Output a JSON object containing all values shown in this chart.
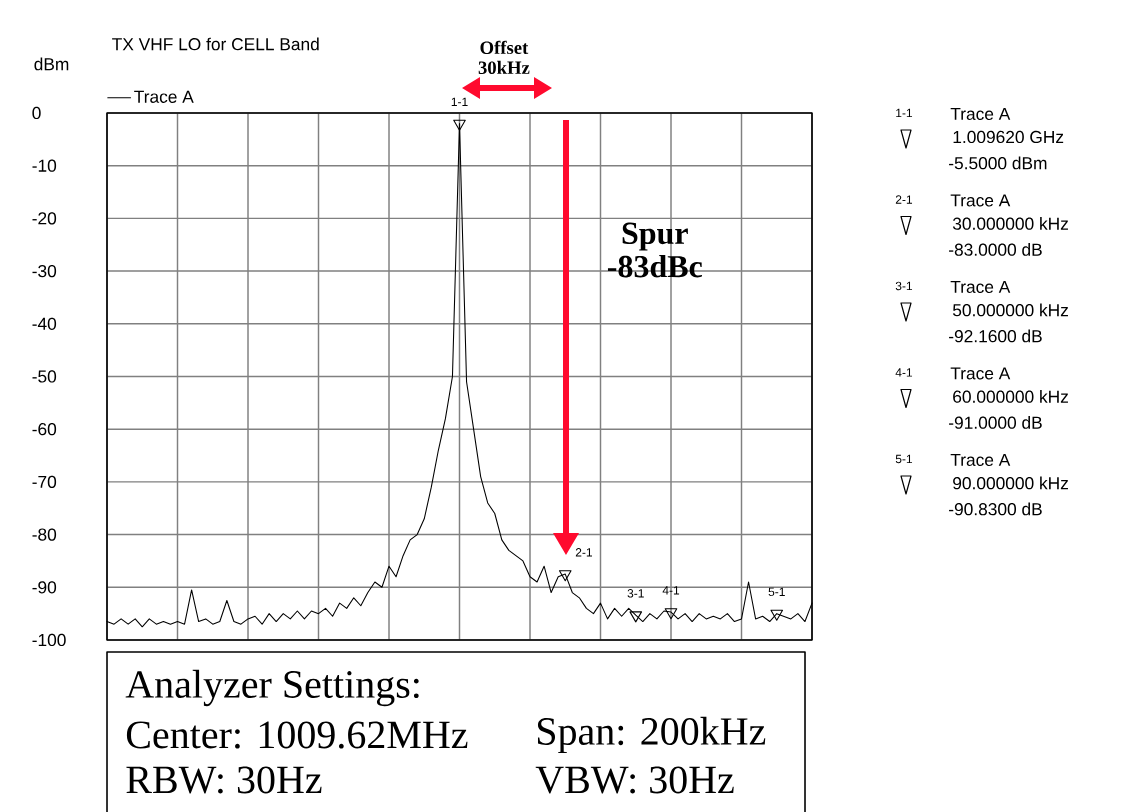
{
  "chart_data": {
    "type": "line",
    "title": "TX VHF LO for CELL Band",
    "ylabel": "dBm",
    "categories": [
      null,
      null,
      null,
      null,
      null,
      null,
      null,
      null,
      null,
      null,
      null,
      null,
      null,
      null,
      null,
      null,
      null,
      null,
      null,
      null,
      null,
      null,
      null,
      null,
      null,
      null,
      null,
      null,
      null,
      null,
      null,
      null,
      null,
      null,
      null,
      null,
      null,
      null,
      null,
      null,
      null,
      null,
      null,
      null,
      null,
      null,
      null,
      null,
      null,
      null,
      null,
      null,
      null,
      null,
      null,
      null,
      null,
      null,
      null,
      null,
      null,
      null,
      null,
      null,
      null,
      null,
      null,
      null,
      null,
      null,
      null,
      null,
      null,
      null,
      null,
      null,
      null,
      null,
      null,
      null,
      null,
      null,
      null,
      null,
      null,
      null,
      null,
      null,
      null,
      null,
      null,
      null,
      null,
      null,
      null,
      null,
      null,
      null,
      null,
      null,
      null
    ],
    "series": [
      {
        "name": "Trace A",
        "color": "#000000",
        "values": [
          -96.5,
          -97,
          -96,
          -97,
          -96,
          -97.5,
          -96,
          -97,
          -96.5,
          -97,
          -96.5,
          -97,
          -90.5,
          -96.5,
          -96,
          -97,
          -96.5,
          -92.5,
          -96.5,
          -97,
          -96,
          -95.5,
          -97,
          -95,
          -96.5,
          -95,
          -96,
          -94.5,
          -96,
          -94.5,
          -95,
          -94,
          -95.5,
          -93,
          -94,
          -92,
          -93.5,
          -91,
          -89,
          -90,
          -86,
          -88,
          -84,
          -81,
          -80,
          -77,
          -71,
          -64,
          -58,
          -50,
          -2,
          -51,
          -60,
          -69,
          -74,
          -76,
          -81,
          -83,
          -84,
          -85,
          -88,
          -89,
          -86,
          -91,
          -88,
          -87.5,
          -91,
          -92,
          -94,
          -95,
          -93,
          -96,
          -94,
          -95.5,
          -94,
          -95.3,
          -96.5,
          -95,
          -96,
          -94.5,
          -94.7,
          -96,
          -95,
          -96.5,
          -95,
          -96,
          -95.5,
          -96,
          -95,
          -96.5,
          -96,
          -89,
          -96,
          -95.5,
          -96.5,
          -95,
          -95.5,
          -96,
          -95,
          -96.5,
          -93
        ]
      },
      {
        "type": "scatter",
        "marker": "triangle",
        "color": "#000000",
        "values": [
          null,
          null,
          null,
          null,
          null,
          null,
          null,
          null,
          null,
          null,
          null,
          null,
          null,
          null,
          null,
          null,
          null,
          null,
          null,
          null,
          null,
          null,
          null,
          null,
          null,
          null,
          null,
          null,
          null,
          null,
          null,
          null,
          null,
          null,
          null,
          null,
          null,
          null,
          null,
          null,
          null,
          null,
          null,
          null,
          null,
          null,
          null,
          null,
          null,
          null,
          -2,
          null,
          null,
          null,
          null,
          null,
          null,
          null,
          null,
          null,
          null,
          null,
          null,
          null,
          null,
          -87.5,
          null,
          null,
          null,
          null,
          null,
          null,
          null,
          null,
          null,
          -95.3,
          null,
          null,
          null,
          null,
          -94.7,
          null,
          null,
          null,
          null,
          null,
          null,
          null,
          null,
          null,
          null,
          null,
          null,
          null,
          null,
          -95,
          null,
          null,
          null,
          null,
          null
        ]
      }
    ],
    "ylim": [
      -100,
      0
    ],
    "yticks": [
      -100,
      -90,
      -80,
      -70,
      -60,
      -50,
      -40,
      -30,
      -20,
      -10,
      0
    ],
    "grid": true,
    "legend": "top left",
    "tick_labels": "y",
    "annotations": [
      "Offset 30kHz",
      "Spur -83dBc",
      "1-1",
      "2-1",
      "3-1",
      "4-1",
      "5-1",
      "1-1",
      "Trace A",
      "1.009620 GHz",
      "-5.5000 dBm",
      "2-1",
      "Trace A",
      "30.000000 kHz",
      "-83.0000 dB",
      "3-1",
      "Trace A",
      "50.000000 kHz",
      "-92.1600 dB",
      "4-1",
      "Trace A",
      "60.000000 kHz",
      "-91.0000 dB",
      "5-1",
      "Trace A",
      "90.000000 kHz",
      "-90.8300 dB",
      "Analyzer Settings:",
      "Center: 1009.62MHz",
      "Span: 200kHz",
      "RBW: 30Hz",
      "VBW: 30Hz"
    ]
  }
}
